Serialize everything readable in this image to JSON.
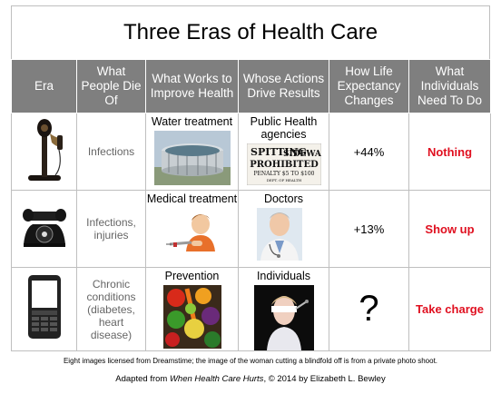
{
  "title": "Three Eras of Health Care",
  "headers": [
    "Era",
    "What People Die Of",
    "What Works to Improve Health",
    "Whose Actions Drive Results",
    "How Life Expectancy Changes",
    "What Individuals Need To Do"
  ],
  "rows": [
    {
      "era_icon": "candlestick-phone-icon",
      "die_of": "Infections",
      "works": "Water treatment",
      "works_icon": "water-treatment-tank-icon",
      "whose": "Public Health agencies",
      "whose_icon": "spitting-prohibited-sign-icon",
      "sign": {
        "line1": "SPITTING",
        "on": "ON",
        "line2": "SIDEWALKS",
        "line3": "PROHIBITED",
        "line4": "PENALTY $5 TO $100",
        "line5": "DEPT. OF HEALTH"
      },
      "change": "+44%",
      "todo": "Nothing"
    },
    {
      "era_icon": "rotary-phone-icon",
      "die_of": "Infections, injuries",
      "works": "Medical treatment",
      "works_icon": "child-vaccination-icon",
      "whose": "Doctors",
      "whose_icon": "doctor-icon",
      "change": "+13%",
      "todo": "Show up"
    },
    {
      "era_icon": "smartphone-icon",
      "die_of": "Chronic conditions (diabetes, heart disease)",
      "works": "Prevention",
      "works_icon": "vegetables-icon",
      "whose": "Individuals",
      "whose_icon": "woman-cutting-blindfold-icon",
      "change": "?",
      "todo": "Take charge"
    }
  ],
  "footnote": "Eight images licensed from Dreamstime; the image of the woman cutting a blindfold off is from a private photo shoot.",
  "credit": {
    "prefix": "Adapted from ",
    "book": "When Health Care Hurts",
    "suffix": ", © 2014 by Elizabeth L. Bewley"
  },
  "colors": {
    "header_bg": "#7f7f7f",
    "todo_text": "#e01020",
    "border": "#bfbfbf"
  }
}
